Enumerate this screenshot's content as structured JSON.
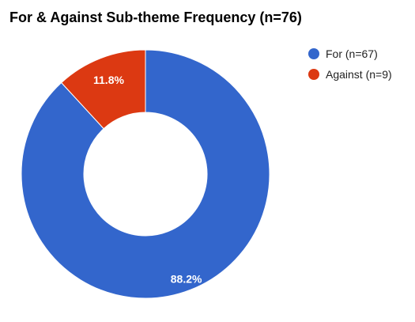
{
  "chart_data": {
    "type": "pie",
    "title": "For & Against Sub-theme Frequency (n=76)",
    "donut": true,
    "legend_position": "right",
    "slices": [
      {
        "label": "For (n=67)",
        "value": 67,
        "percent_label": "88.2%",
        "color": "#3366cc"
      },
      {
        "label": "Against (n=9)",
        "value": 9,
        "percent_label": "11.8%",
        "color": "#dc3912"
      }
    ]
  }
}
